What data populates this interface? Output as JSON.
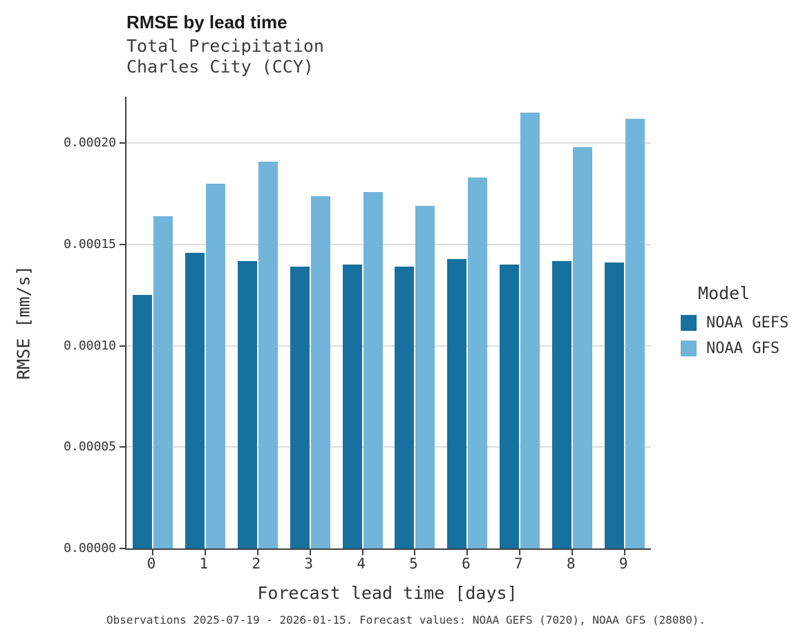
{
  "header": {
    "title": "RMSE by lead time",
    "subtitle_line1": "Total Precipitation",
    "subtitle_line2": "Charles City (CCY)"
  },
  "chart_data": {
    "type": "bar",
    "title": "RMSE by lead time",
    "subtitle": [
      "Total Precipitation",
      "Charles City (CCY)"
    ],
    "categories": [
      "0",
      "1",
      "2",
      "3",
      "4",
      "5",
      "6",
      "7",
      "8",
      "9"
    ],
    "series": [
      {
        "name": "NOAA GEFS",
        "color": "#17719f",
        "values": [
          0.000125,
          0.000146,
          0.000142,
          0.000139,
          0.00014,
          0.000139,
          0.000143,
          0.00014,
          0.000142,
          0.000141
        ]
      },
      {
        "name": "NOAA GFS",
        "color": "#72b5da",
        "values": [
          0.000164,
          0.00018,
          0.000191,
          0.000174,
          0.000176,
          0.000169,
          0.000183,
          0.000215,
          0.000198,
          0.000212
        ]
      }
    ],
    "xlabel": "Forecast lead time [days]",
    "ylabel": "RMSE [mm/s]",
    "ylim": [
      0,
      0.000223
    ],
    "yticks": [
      0,
      5e-05,
      0.0001,
      0.00015,
      0.0002
    ],
    "ytick_labels": [
      "0.00000",
      "0.00005",
      "0.00010",
      "0.00015",
      "0.00020"
    ],
    "legend_title": "Model",
    "legend_position": "right",
    "grid": true
  },
  "caption": "Observations 2025-07-19 - 2026-01-15. Forecast values: NOAA GEFS (7020), NOAA GFS (28080)."
}
